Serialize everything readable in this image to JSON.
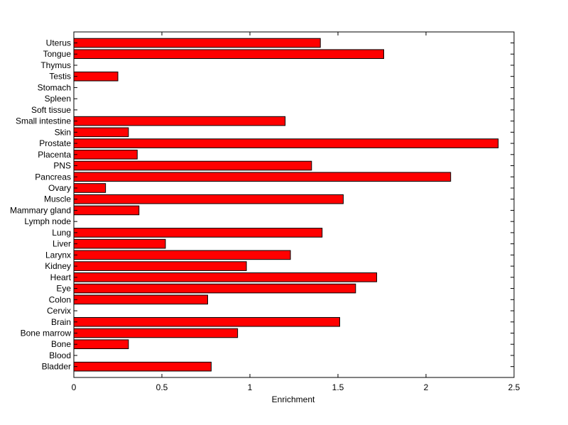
{
  "chart_data": {
    "type": "bar",
    "orientation": "horizontal",
    "categories": [
      "Uterus",
      "Tongue",
      "Thymus",
      "Testis",
      "Stomach",
      "Spleen",
      "Soft tissue",
      "Small intestine",
      "Skin",
      "Prostate",
      "Placenta",
      "PNS",
      "Pancreas",
      "Ovary",
      "Muscle",
      "Mammary gland",
      "Lymph node",
      "Lung",
      "Liver",
      "Larynx",
      "Kidney",
      "Heart",
      "Eye",
      "Colon",
      "Cervix",
      "Brain",
      "Bone marrow",
      "Bone",
      "Blood",
      "Bladder"
    ],
    "values": [
      1.4,
      1.76,
      0,
      0.25,
      0,
      0,
      0,
      1.2,
      0.31,
      2.41,
      0.36,
      1.35,
      2.14,
      0.18,
      1.53,
      0.37,
      0,
      1.41,
      0.52,
      1.23,
      0.98,
      1.72,
      1.6,
      0.76,
      0,
      1.51,
      0.93,
      0.31,
      0,
      0.78
    ],
    "xlabel": "Enrichment",
    "ylabel": "",
    "title": "",
    "xlim": [
      0,
      2.5
    ],
    "xticks": [
      0,
      0.5,
      1,
      1.5,
      2,
      2.5
    ],
    "xtick_labels": [
      "0",
      "0.5",
      "1",
      "1.5",
      "2",
      "2.5"
    ],
    "grid": false,
    "colors": {
      "bar_fill": "#ff0000",
      "bar_edge": "#000000",
      "axis": "#000000"
    }
  }
}
